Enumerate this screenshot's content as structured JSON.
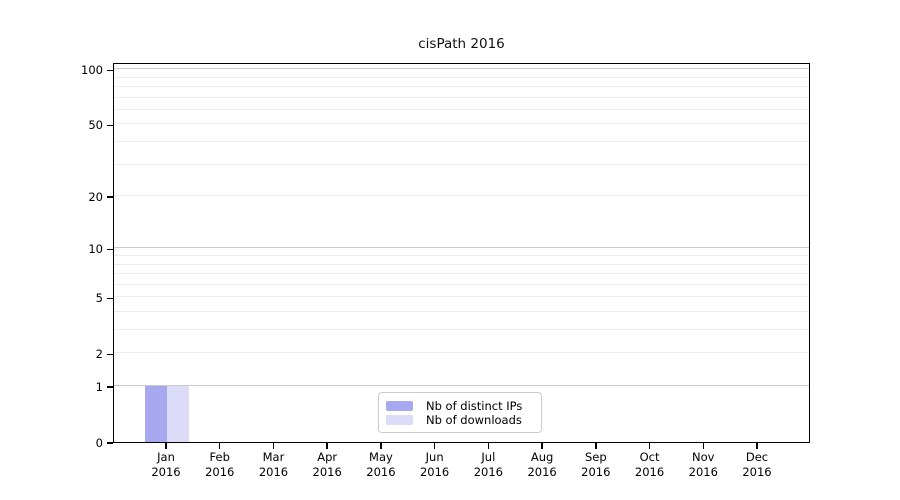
{
  "chart_data": {
    "type": "bar",
    "title": "cisPath 2016",
    "categories": [
      "Jan",
      "Feb",
      "Mar",
      "Apr",
      "May",
      "Jun",
      "Jul",
      "Aug",
      "Sep",
      "Oct",
      "Nov",
      "Dec"
    ],
    "year_label": "2016",
    "series": [
      {
        "name": "Nb of distinct IPs",
        "color": "#a8a8f0",
        "values": [
          1,
          0,
          0,
          0,
          0,
          0,
          0,
          0,
          0,
          0,
          0,
          0
        ]
      },
      {
        "name": "Nb of downloads",
        "color": "#dcdcf8",
        "values": [
          1,
          0,
          0,
          0,
          0,
          0,
          0,
          0,
          0,
          0,
          0,
          0
        ]
      }
    ],
    "xlabel": "",
    "ylabel": "",
    "yscale": "log1p",
    "ylim": [
      0,
      109
    ],
    "y_ticks": [
      0,
      1,
      2,
      5,
      10,
      20,
      50,
      100
    ],
    "gridlines": {
      "major": [
        1,
        10,
        100
      ],
      "minor": [
        2,
        3,
        4,
        5,
        6,
        7,
        8,
        9,
        20,
        30,
        40,
        50,
        60,
        70,
        80,
        90
      ]
    },
    "grid": "horizontal",
    "legend_position": "lower center"
  },
  "colors": {
    "axis": "#000000",
    "major_gridline": "#c9c9c9",
    "minor_gridline": "#ececec",
    "legend_border": "#cccccc",
    "background": "#ffffff",
    "text": "#000000"
  }
}
